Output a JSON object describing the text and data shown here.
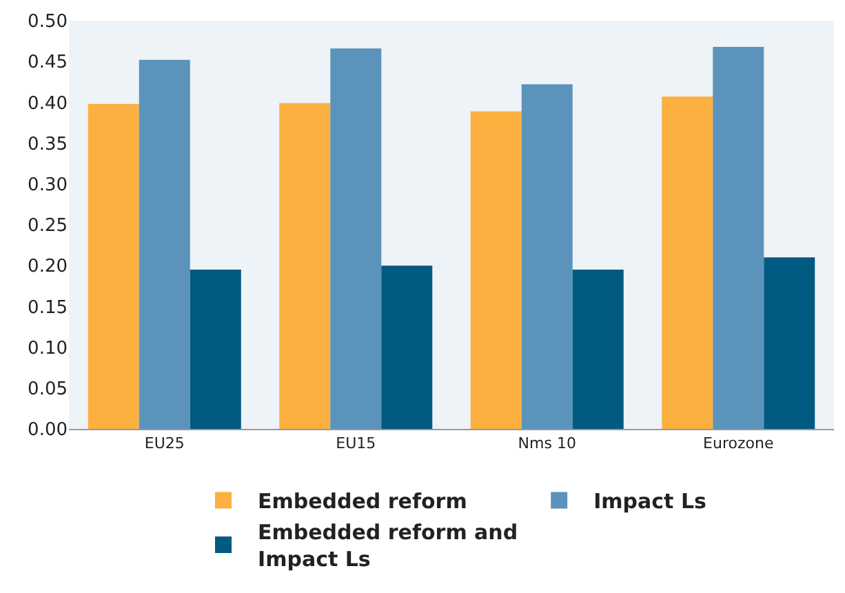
{
  "chart_data": {
    "type": "bar",
    "categories": [
      "EU25",
      "EU15",
      "Nms 10",
      "Eurozone"
    ],
    "series": [
      {
        "name": "Embedded reform",
        "color": "#fbb040",
        "values": [
          0.398,
          0.399,
          0.389,
          0.407
        ]
      },
      {
        "name": "Impact Ls",
        "color": "#5b93bb",
        "values": [
          0.452,
          0.466,
          0.422,
          0.468
        ]
      },
      {
        "name": "Embedded reform and Impact Ls",
        "color": "#005a82",
        "values": [
          0.195,
          0.2,
          0.195,
          0.21
        ]
      }
    ],
    "ylim": [
      0,
      0.5
    ],
    "yticks": [
      {
        "value": 0,
        "label": "0.00"
      },
      {
        "value": 0.05,
        "label": "0.05"
      },
      {
        "value": 0.1,
        "label": "0.10"
      },
      {
        "value": 0.15,
        "label": "0.15"
      },
      {
        "value": 0.2,
        "label": "0.20"
      },
      {
        "value": 0.25,
        "label": "0.25"
      },
      {
        "value": 0.3,
        "label": "0.30"
      },
      {
        "value": 0.35,
        "label": "0.35"
      },
      {
        "value": 0.4,
        "label": "0.40"
      },
      {
        "value": 0.45,
        "label": "0.45"
      },
      {
        "value": 0.5,
        "label": "0.50"
      }
    ],
    "grid": false,
    "legend": "bottom"
  }
}
